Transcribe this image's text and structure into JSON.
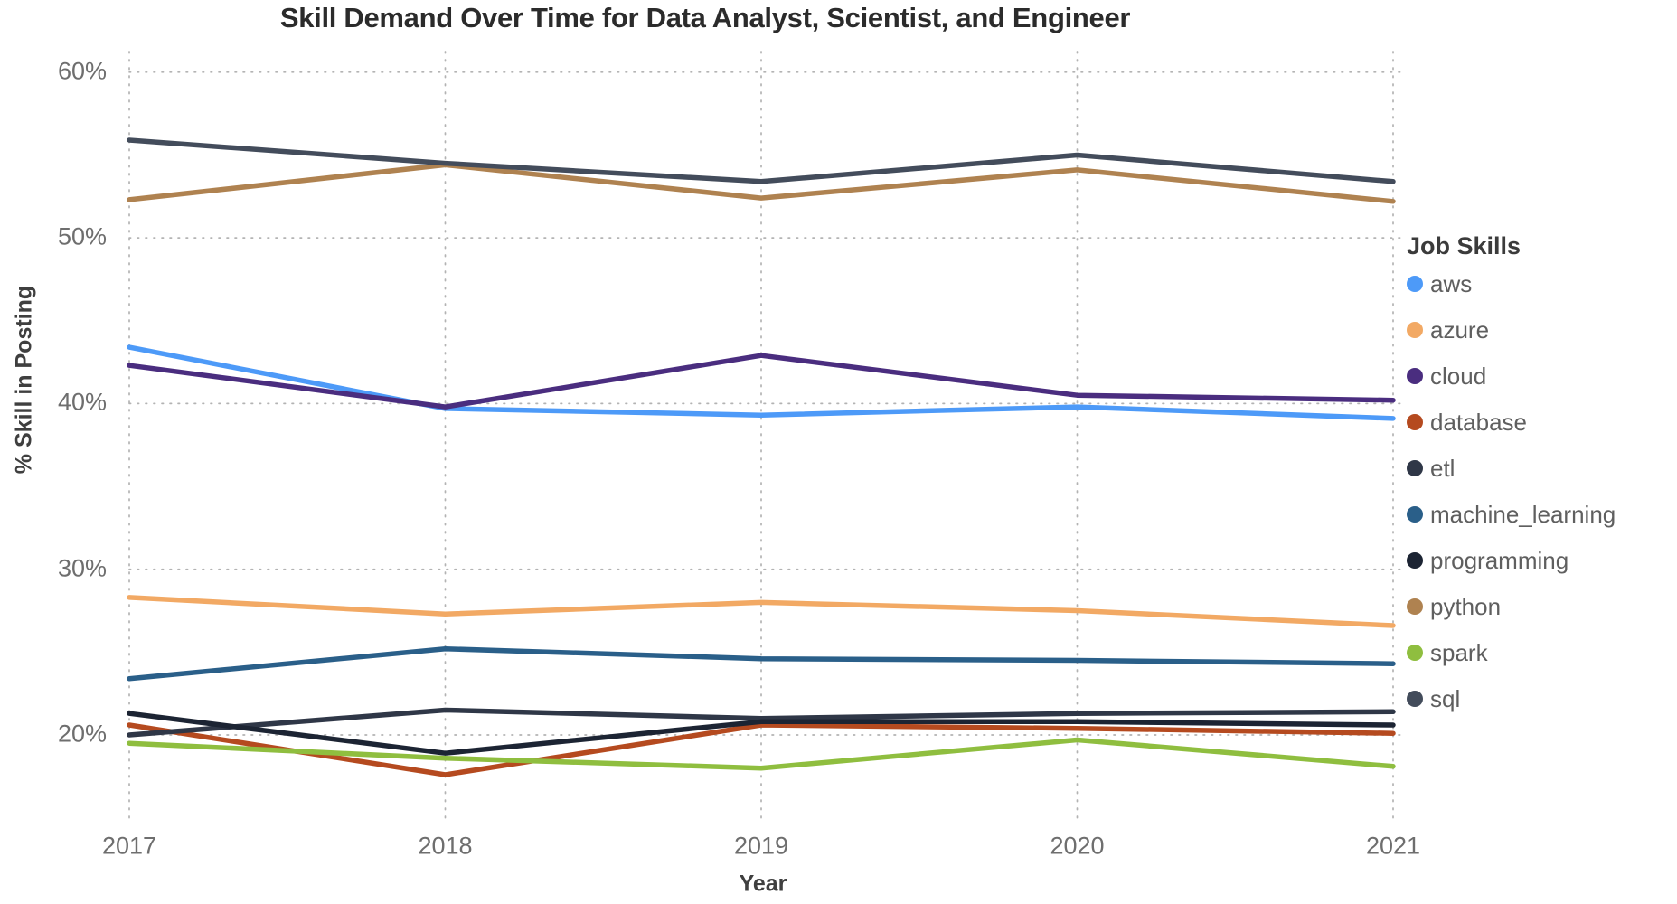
{
  "chart_data": {
    "type": "line",
    "title": "Skill Demand Over Time for Data Analyst, Scientist, and Engineer",
    "xlabel": "Year",
    "ylabel": "% Skill in Posting",
    "legend_title": "Job Skills",
    "legend_position": "right",
    "grid": "dotted",
    "x": [
      2017,
      2018,
      2019,
      2020,
      2021
    ],
    "x_tick_labels": [
      "2017",
      "2018",
      "2019",
      "2020",
      "2021"
    ],
    "y_ticks": [
      {
        "value": 60,
        "label": "60%"
      },
      {
        "value": 50,
        "label": "50%"
      },
      {
        "value": 40,
        "label": "40%"
      },
      {
        "value": 30,
        "label": "30%"
      },
      {
        "value": 20,
        "label": "20%"
      }
    ],
    "ylim": [
      16,
      62
    ],
    "unit": "percent",
    "series": [
      {
        "name": "aws",
        "color": "#4D9AF8",
        "values": [
          43.4,
          39.7,
          39.3,
          39.8,
          39.1
        ]
      },
      {
        "name": "azure",
        "color": "#F2A964",
        "values": [
          28.3,
          27.3,
          28.0,
          27.5,
          26.6
        ]
      },
      {
        "name": "cloud",
        "color": "#4A2D7F",
        "values": [
          42.3,
          39.8,
          42.9,
          40.5,
          40.2
        ]
      },
      {
        "name": "database",
        "color": "#B54A1F",
        "values": [
          20.6,
          17.6,
          20.6,
          20.4,
          20.1
        ]
      },
      {
        "name": "etl",
        "color": "#2F3747",
        "values": [
          20.0,
          21.5,
          21.0,
          21.3,
          21.4
        ]
      },
      {
        "name": "machine_learning",
        "color": "#2A5F89",
        "values": [
          23.4,
          25.2,
          24.6,
          24.5,
          24.3
        ]
      },
      {
        "name": "programming",
        "color": "#1C2433",
        "values": [
          21.3,
          18.9,
          20.8,
          20.8,
          20.6
        ]
      },
      {
        "name": "python",
        "color": "#AF8250",
        "values": [
          52.3,
          54.4,
          52.4,
          54.1,
          52.2
        ]
      },
      {
        "name": "spark",
        "color": "#8FBE3F",
        "values": [
          19.5,
          18.6,
          18.0,
          19.7,
          18.1
        ]
      },
      {
        "name": "sql",
        "color": "#434C5B",
        "values": [
          55.9,
          54.5,
          53.4,
          55.0,
          53.4
        ]
      }
    ]
  }
}
